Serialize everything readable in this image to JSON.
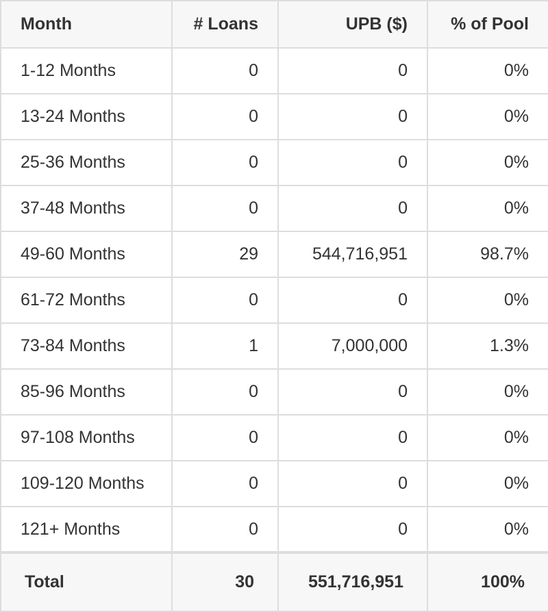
{
  "table": {
    "headers": [
      "Month",
      "# Loans",
      "UPB ($)",
      "% of Pool"
    ],
    "rows": [
      [
        "1-12 Months",
        "0",
        "0",
        "0%"
      ],
      [
        "13-24 Months",
        "0",
        "0",
        "0%"
      ],
      [
        "25-36 Months",
        "0",
        "0",
        "0%"
      ],
      [
        "37-48 Months",
        "0",
        "0",
        "0%"
      ],
      [
        "49-60 Months",
        "29",
        "544,716,951",
        "98.7%"
      ],
      [
        "61-72 Months",
        "0",
        "0",
        "0%"
      ],
      [
        "73-84 Months",
        "1",
        "7,000,000",
        "1.3%"
      ],
      [
        "85-96 Months",
        "0",
        "0",
        "0%"
      ],
      [
        "97-108 Months",
        "0",
        "0",
        "0%"
      ],
      [
        "109-120 Months",
        "0",
        "0",
        "0%"
      ],
      [
        "121+ Months",
        "0",
        "0",
        "0%"
      ]
    ],
    "total": [
      "Total",
      "30",
      "551,716,951",
      "100%"
    ]
  },
  "colors": {
    "border": "#dddddd",
    "header_bg": "#f7f7f7",
    "text": "#333333"
  }
}
